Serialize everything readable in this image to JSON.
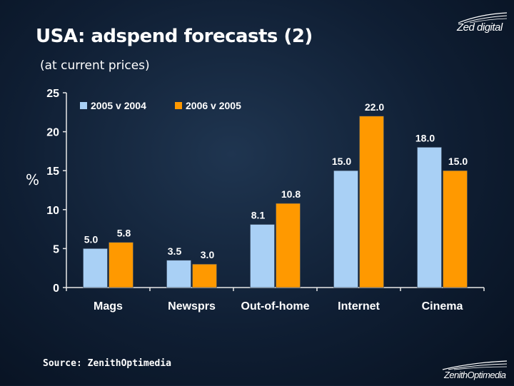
{
  "slide": {
    "title": "USA: adspend forecasts (2)",
    "subtitle": "(at current prices)",
    "source": "Source: ZenithOptimedia",
    "logo_top": "Zed digital",
    "logo_bottom": "ZenithOptimedia"
  },
  "colors": {
    "series1": "#a9d0f5",
    "series2": "#ff9900",
    "axis": "#e8e8e8",
    "background": "#14263d"
  },
  "chart_data": {
    "type": "bar",
    "title": "",
    "xlabel": "",
    "ylabel": "%",
    "ylim": [
      0,
      25
    ],
    "yticks": [
      0,
      5,
      10,
      15,
      20,
      25
    ],
    "grid": false,
    "legend_position": "top-left",
    "categories": [
      "Mags",
      "Newsprs",
      "Out-of-home",
      "Internet",
      "Cinema"
    ],
    "series": [
      {
        "name": "2005 v 2004",
        "values": [
          5.0,
          3.5,
          8.1,
          15.0,
          18.0
        ],
        "labels": [
          "5.0",
          "3.5",
          "8.1",
          "15.0",
          "18.0"
        ]
      },
      {
        "name": "2006 v 2005",
        "values": [
          5.8,
          3.0,
          10.8,
          22.0,
          15.0
        ],
        "labels": [
          "5.8",
          "3.0",
          "10.8",
          "22.0",
          "15.0"
        ]
      }
    ]
  }
}
